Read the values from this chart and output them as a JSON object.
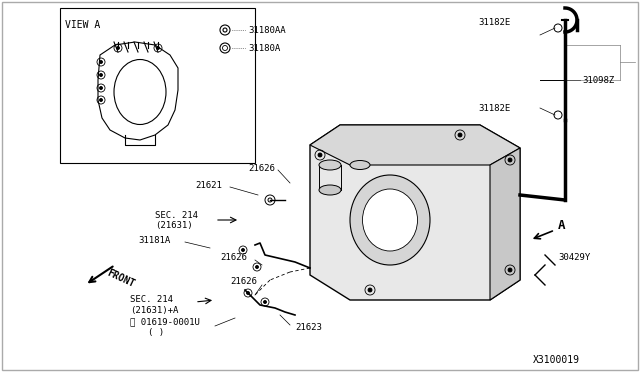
{
  "bg_color": "#f0f0f0",
  "title": "",
  "diagram_id": "X3100019",
  "view_a_label": "VIEW A",
  "legend_items": [
    {
      "symbol": "circle_dot",
      "label": "31180AA"
    },
    {
      "symbol": "circle_dot_small",
      "label": "31180A"
    }
  ],
  "part_labels": [
    "21626",
    "21621",
    "21626",
    "21626",
    "21623",
    "31181A",
    "SEC. 214\n(21631)",
    "SEC. 214\n(21631)+A",
    "01619-0001U\n( )",
    "31182E",
    "31182E",
    "31098Z",
    "30429Y",
    "A"
  ],
  "front_label": "FRONT",
  "arrow_front": true
}
